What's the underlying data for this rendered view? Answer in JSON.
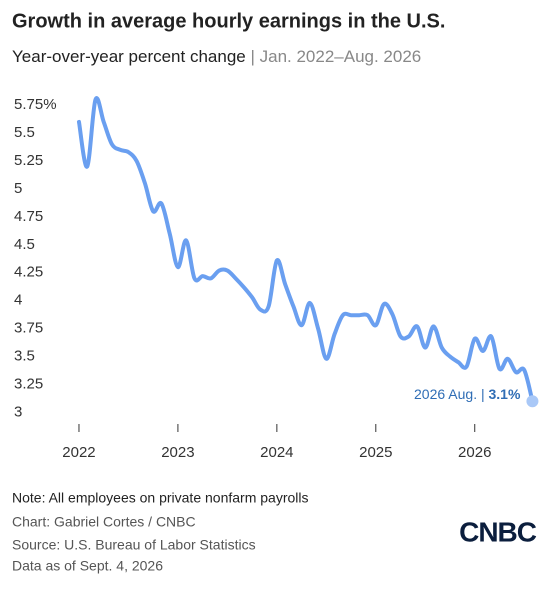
{
  "chart_data": {
    "type": "line",
    "title": "Growth in average hourly earnings in the U.S.",
    "subtitle": "Year-over-year percent change",
    "subtitle_range": "| Jan. 2022–Aug. 2026",
    "x": [
      2022,
      2022.083,
      2022.167,
      2022.25,
      2022.333,
      2022.417,
      2022.5,
      2022.583,
      2022.667,
      2022.75,
      2022.833,
      2022.917,
      2023,
      2023.083,
      2023.167,
      2023.25,
      2023.333,
      2023.417,
      2023.5,
      2023.583,
      2023.667,
      2023.75,
      2023.833,
      2023.917,
      2024,
      2024.083,
      2024.167,
      2024.25,
      2024.333,
      2024.417,
      2024.5,
      2024.583,
      2024.667,
      2024.75,
      2024.833,
      2024.917,
      2025,
      2025.083,
      2025.167,
      2025.25,
      2025.333,
      2025.417,
      2025.5,
      2025.583,
      2025.667,
      2025.75,
      2025.833,
      2025.917,
      2026,
      2026.083,
      2026.167,
      2026.25,
      2026.333,
      2026.417,
      2026.5,
      2026.583
    ],
    "series": [
      {
        "name": "Average hourly earnings",
        "color": "#6a9ff0",
        "values": [
          5.6,
          5.2,
          5.8,
          5.6,
          5.4,
          5.35,
          5.33,
          5.25,
          5.05,
          4.8,
          4.87,
          4.6,
          4.3,
          4.54,
          4.2,
          4.22,
          4.2,
          4.27,
          4.27,
          4.2,
          4.12,
          4.03,
          3.92,
          3.95,
          4.36,
          4.15,
          3.95,
          3.78,
          3.98,
          3.75,
          3.48,
          3.7,
          3.87,
          3.87,
          3.87,
          3.87,
          3.78,
          3.97,
          3.88,
          3.68,
          3.68,
          3.77,
          3.58,
          3.77,
          3.58,
          3.5,
          3.45,
          3.41,
          3.66,
          3.55,
          3.68,
          3.39,
          3.48,
          3.36,
          3.38,
          3.1
        ]
      }
    ],
    "annotation": {
      "label": "2026 Aug. |",
      "value_label": "3.1%"
    },
    "xlim": [
      2021.5,
      2026.7
    ],
    "xticks": [
      2022,
      2023,
      2024,
      2025,
      2026
    ],
    "ylim": [
      2.95,
      5.85
    ],
    "yticks": [
      {
        "value": 5.75,
        "label": "5.75%"
      },
      5.5,
      5.25,
      5,
      4.75,
      4.5,
      4.25,
      4,
      3.75,
      3.5,
      3.25,
      3
    ],
    "grid": false,
    "note": "Note: All employees on private nonfarm payrolls",
    "credit": "Chart: Gabriel Cortes / CNBC",
    "source": "Source: U.S. Bureau of Labor Statistics",
    "as_of": "Data as of Sept. 4, 2026",
    "logo": "CNBC"
  }
}
